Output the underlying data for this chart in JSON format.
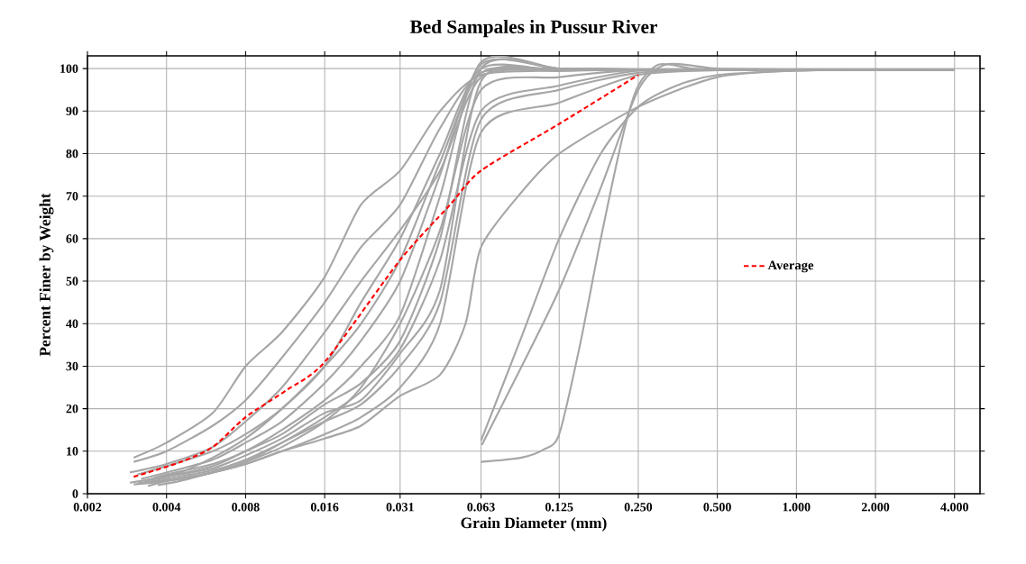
{
  "chart_data": {
    "type": "line",
    "title": "Bed Sampales in Pussur River",
    "xlabel": "Grain Diameter (mm)",
    "ylabel": "Percent Finer by Weight",
    "log": "x",
    "grid": true,
    "legend": "right",
    "marker": "none",
    "xlim": [
      0.002,
      5
    ],
    "ylim": [
      0,
      103
    ],
    "xticks": [
      {
        "value": 0.002,
        "label": "0.002"
      },
      {
        "value": 0.004,
        "label": "0.004"
      },
      {
        "value": 0.008,
        "label": "0.008"
      },
      {
        "value": 0.016,
        "label": "0.016"
      },
      {
        "value": 0.031,
        "label": "0.031"
      },
      {
        "value": 0.063,
        "label": "0.063"
      },
      {
        "value": 0.125,
        "label": "0.125"
      },
      {
        "value": 0.25,
        "label": "0.250"
      },
      {
        "value": 0.5,
        "label": "0.500"
      },
      {
        "value": 1,
        "label": "1.000"
      },
      {
        "value": 2,
        "label": "2.000"
      },
      {
        "value": 4,
        "label": "4.000"
      }
    ],
    "yticks": [
      0,
      10,
      20,
      30,
      40,
      50,
      60,
      70,
      80,
      90,
      100
    ],
    "series": [
      {
        "color": "#a6a6a6",
        "x": [
          0.003,
          0.004,
          0.006,
          0.008,
          0.011,
          0.016,
          0.022,
          0.031,
          0.044,
          0.063,
          0.125,
          0.25,
          0.5,
          1,
          2,
          4
        ],
        "values": [
          8.5,
          12,
          19,
          30,
          38,
          51,
          68,
          76,
          90,
          98.5,
          99.5,
          99.8,
          99.8,
          99.8,
          99.8,
          99.8
        ]
      },
      {
        "color": "#a6a6a6",
        "x": [
          0.003,
          0.004,
          0.006,
          0.008,
          0.011,
          0.016,
          0.022,
          0.031,
          0.044,
          0.063,
          0.125,
          0.25,
          0.5,
          1,
          2,
          4
        ],
        "values": [
          7.5,
          10,
          16,
          22,
          32,
          45,
          58,
          68,
          86,
          99,
          100,
          99.8,
          99.8,
          99.8,
          99.8,
          99.8
        ]
      },
      {
        "color": "#a6a6a6",
        "x": [
          0.0029,
          0.004,
          0.006,
          0.008,
          0.011,
          0.016,
          0.022,
          0.031,
          0.044,
          0.063,
          0.125,
          0.25,
          0.5,
          1,
          2,
          4
        ],
        "values": [
          5,
          7,
          11,
          17,
          25,
          38,
          50,
          62,
          76,
          98,
          99.5,
          99.8,
          99.8,
          99.8,
          99.8,
          99.8
        ]
      },
      {
        "color": "#a6a6a6",
        "x": [
          0.0031,
          0.004,
          0.006,
          0.008,
          0.011,
          0.016,
          0.022,
          0.031,
          0.044,
          0.063,
          0.125,
          0.25,
          0.5,
          1,
          2,
          4
        ],
        "values": [
          4.5,
          6.5,
          10,
          14,
          20,
          30,
          45,
          60,
          80,
          100,
          99.5,
          99.8,
          99.8,
          99.8,
          99.8,
          99.8
        ]
      },
      {
        "color": "#a6a6a6",
        "x": [
          0.0032,
          0.004,
          0.006,
          0.008,
          0.011,
          0.016,
          0.022,
          0.031,
          0.044,
          0.063,
          0.125,
          0.25,
          0.5,
          1,
          2,
          4
        ],
        "values": [
          3.5,
          5,
          8,
          12,
          17,
          26,
          36,
          50,
          75,
          101,
          100,
          99.8,
          99.8,
          99.8,
          99.8,
          99.8
        ]
      },
      {
        "color": "#a6a6a6",
        "x": [
          0.0033,
          0.004,
          0.006,
          0.008,
          0.011,
          0.016,
          0.022,
          0.031,
          0.044,
          0.063,
          0.125,
          0.25,
          0.5,
          1,
          2,
          4
        ],
        "values": [
          3,
          4.5,
          7,
          10,
          15,
          22,
          30,
          42,
          70,
          101.5,
          100,
          99.8,
          99.8,
          99.8,
          99.8,
          99.8
        ]
      },
      {
        "color": "#a6a6a6",
        "x": [
          0.0034,
          0.004,
          0.006,
          0.008,
          0.011,
          0.016,
          0.022,
          0.031,
          0.044,
          0.063,
          0.125,
          0.25,
          0.5,
          1,
          2,
          4
        ],
        "values": [
          3.2,
          4,
          6.5,
          10,
          14,
          21,
          26,
          36,
          60,
          100,
          100,
          99.8,
          99.8,
          99.8,
          99.8,
          99.8
        ]
      },
      {
        "color": "#a6a6a6",
        "x": [
          0.0029,
          0.004,
          0.006,
          0.008,
          0.011,
          0.016,
          0.022,
          0.031,
          0.044,
          0.063,
          0.125,
          0.25,
          0.5,
          1,
          2,
          4
        ],
        "values": [
          2.6,
          4,
          6,
          9,
          13,
          19,
          22,
          33,
          48,
          97,
          99.5,
          99.8,
          99.8,
          99.8,
          99.8,
          99.8
        ]
      },
      {
        "color": "#a6a6a6",
        "x": [
          0.0031,
          0.004,
          0.006,
          0.008,
          0.011,
          0.016,
          0.022,
          0.031,
          0.044,
          0.063,
          0.125,
          0.25,
          0.5,
          1,
          2,
          4
        ],
        "values": [
          2.4,
          3.5,
          5.5,
          8,
          12,
          17,
          21,
          30,
          45,
          88,
          95,
          99,
          99.8,
          99.8,
          99.8,
          99.8
        ]
      },
      {
        "color": "#a6a6a6",
        "x": [
          0.0037,
          0.0045,
          0.006,
          0.008,
          0.011,
          0.016,
          0.022,
          0.031,
          0.044,
          0.063,
          0.125,
          0.25,
          0.5,
          1,
          2,
          4
        ],
        "values": [
          2,
          3,
          5,
          7,
          10,
          14,
          18,
          25,
          40,
          85,
          92,
          98.5,
          99.6,
          99.8,
          99.8,
          99.8
        ]
      },
      {
        "color": "#a6a6a6",
        "x": [
          0.0035,
          0.0045,
          0.006,
          0.008,
          0.011,
          0.016,
          0.022,
          0.031,
          0.044,
          0.063,
          0.125,
          0.25,
          0.5,
          1,
          2,
          4
        ],
        "values": [
          2.8,
          3.5,
          5,
          7.5,
          12,
          18,
          24,
          34,
          55,
          90,
          96,
          99.5,
          99.8,
          99.8,
          99.8,
          99.8
        ]
      },
      {
        "color": "#a6a6a6",
        "x": [
          0.003,
          0.004,
          0.006,
          0.008,
          0.011,
          0.016,
          0.022,
          0.031,
          0.044,
          0.063,
          0.125,
          0.25,
          0.5,
          1,
          2,
          4
        ],
        "values": [
          2.2,
          3,
          5,
          7.5,
          11,
          17,
          25,
          40,
          62,
          95,
          98,
          99.7,
          99.8,
          99.8,
          99.8,
          99.8
        ]
      },
      {
        "color": "#a6a6a6",
        "x": [
          0.0036,
          0.0045,
          0.006,
          0.008,
          0.011,
          0.016,
          0.022,
          0.031,
          0.044,
          0.063,
          0.125,
          0.25,
          0.5,
          1,
          2,
          4
        ],
        "values": [
          3.8,
          5,
          8.5,
          13,
          20,
          30,
          40,
          55,
          78,
          99,
          99.8,
          99.8,
          99.8,
          99.8,
          99.8,
          99.8
        ]
      },
      {
        "color": "#a6a6a6",
        "x": [
          0.0034,
          0.004,
          0.006,
          0.008,
          0.011,
          0.016,
          0.022,
          0.031,
          0.044,
          0.055,
          0.063,
          0.09,
          0.125,
          0.25,
          0.5,
          1,
          2,
          4
        ],
        "values": [
          1.8,
          3,
          5,
          7,
          10,
          13,
          16,
          23,
          28,
          40,
          58,
          71,
          80,
          91,
          98,
          99.5,
          99.8,
          99.8
        ]
      },
      {
        "color": "#a6a6a6",
        "x": [
          0.063,
          0.09,
          0.125,
          0.18,
          0.25,
          0.35,
          0.5,
          1,
          2,
          4
        ],
        "values": [
          12.5,
          37,
          60,
          80,
          91,
          96,
          98.5,
          99.5,
          99.8,
          99.8
        ]
      },
      {
        "color": "#a6a6a6",
        "x": [
          0.0635,
          0.09,
          0.125,
          0.18,
          0.25,
          0.32,
          0.5,
          1,
          2,
          4
        ],
        "values": [
          11.5,
          30,
          48,
          72,
          95,
          101,
          100,
          99.8,
          99.8,
          99.8
        ]
      },
      {
        "color": "#a6a6a6",
        "x": [
          0.063,
          0.09,
          0.11,
          0.125,
          0.15,
          0.18,
          0.22,
          0.25,
          0.3,
          0.4,
          0.5,
          1,
          2,
          4
        ],
        "values": [
          7.5,
          8.5,
          10.5,
          14,
          35,
          60,
          85,
          96,
          101,
          100,
          99.7,
          99.8,
          99.8,
          99.8
        ]
      },
      {
        "name": "Average",
        "color": "#ff0000",
        "line_style": "dashed",
        "x": [
          0.003,
          0.0045,
          0.006,
          0.008,
          0.0114,
          0.016,
          0.031,
          0.0476,
          0.063,
          0.125,
          0.25
        ],
        "values": [
          4,
          7.4,
          11,
          18,
          24.3,
          31,
          55,
          67.7,
          76,
          87,
          98.5
        ]
      }
    ]
  }
}
